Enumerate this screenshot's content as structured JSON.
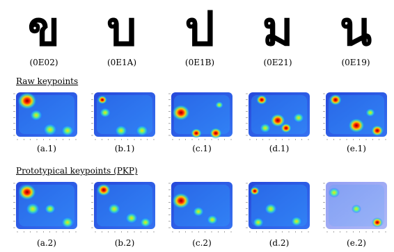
{
  "characters": [
    {
      "glyph": "ข",
      "code": "(0E02)"
    },
    {
      "glyph": "บ",
      "code": "(0E1A)"
    },
    {
      "glyph": "ป",
      "code": "(0E1B)"
    },
    {
      "glyph": "ม",
      "code": "(0E21)"
    },
    {
      "glyph": "น",
      "code": "(0E19)"
    }
  ],
  "sections": {
    "raw": {
      "title": "Raw keypoints",
      "captions": [
        "(a.1)",
        "(b.1)",
        "(c.1)",
        "(d.1)",
        "(e.1)"
      ]
    },
    "pkp": {
      "title": "Prototypical keypoints (PKP)",
      "captions": [
        "(a.2)",
        "(b.2)",
        "(c.2)",
        "(d.2)",
        "(e.2)"
      ]
    }
  }
}
